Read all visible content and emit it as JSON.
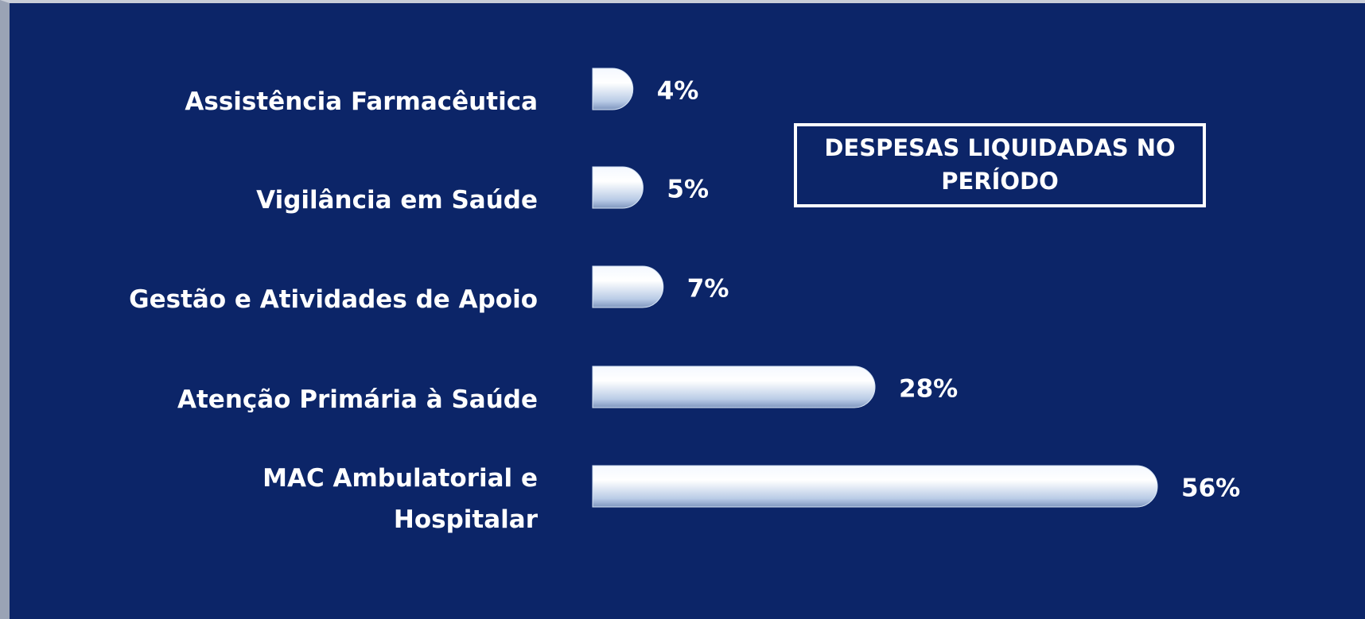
{
  "chart_data": {
    "type": "bar",
    "annotation": "DESPESAS LIQUIDADAS NO PERÍODO",
    "categories": [
      "Assistência Farmacêutica",
      "Vigilância em Saúde",
      "Gestão e Atividades de Apoio",
      "Atenção Primária à Saúde",
      "MAC Ambulatorial e Hospitalar"
    ],
    "values": [
      4,
      5,
      7,
      28,
      56
    ],
    "value_labels": [
      "4%",
      "5%",
      "7%",
      "28%",
      "56%"
    ],
    "color": "#d6e4f5"
  }
}
